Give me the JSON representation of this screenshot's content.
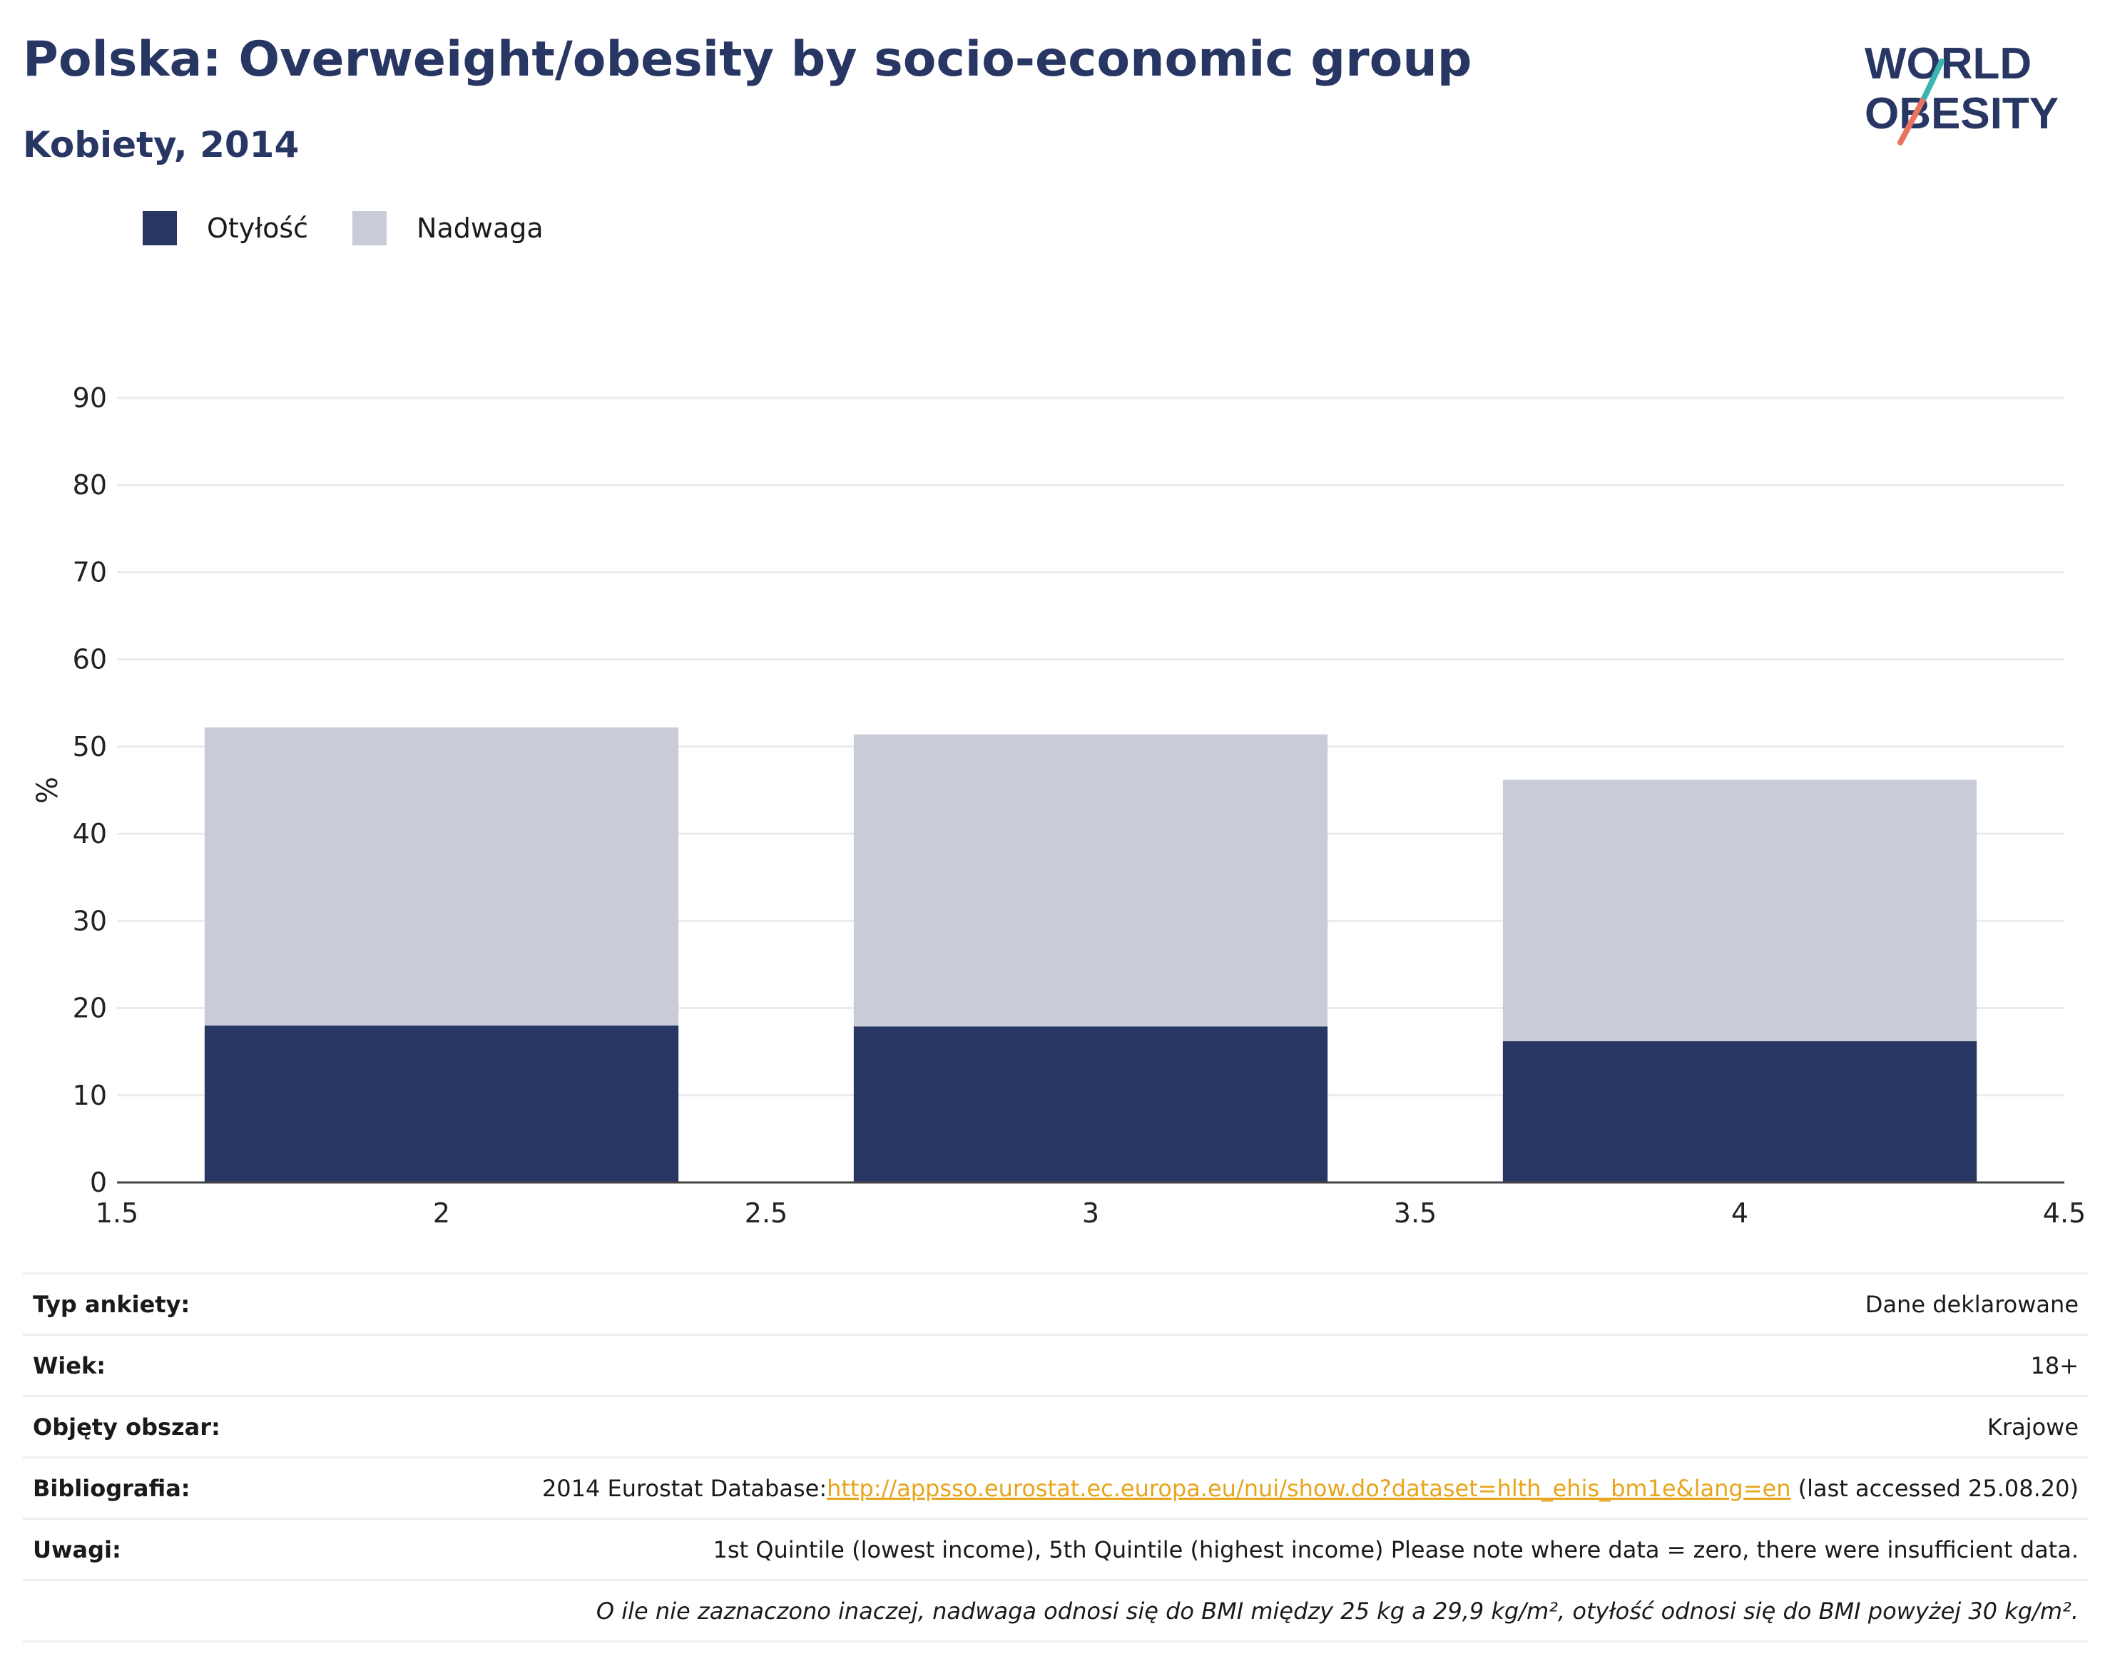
{
  "header": {
    "title": "Polska: Overweight/obesity by socio-economic group",
    "subtitle": "Kobiety, 2014"
  },
  "logo": {
    "line1": "WORLD",
    "line2": "OBESITY"
  },
  "legend": [
    {
      "label": "Otyłość",
      "color": "#283663"
    },
    {
      "label": "Nadwaga",
      "color": "#c9ccd8"
    }
  ],
  "chart_data": {
    "type": "bar",
    "stacked": true,
    "x": [
      2,
      3,
      4
    ],
    "series": [
      {
        "name": "Otyłość",
        "values": [
          18.0,
          17.9,
          16.2
        ],
        "color": "#283663"
      },
      {
        "name": "Nadwaga",
        "values": [
          34.2,
          33.5,
          30.0
        ],
        "color": "#c9ccd8"
      }
    ],
    "xlim": [
      1.5,
      4.5
    ],
    "ylim": [
      0,
      90
    ],
    "x_ticks": [
      "1.5",
      "2",
      "2.5",
      "3",
      "3.5",
      "4",
      "4.5"
    ],
    "y_ticks": [
      "0",
      "10",
      "20",
      "30",
      "40",
      "50",
      "60",
      "70",
      "80",
      "90"
    ],
    "ylabel": "%",
    "xlabel": "",
    "grid": true,
    "legend_position": "top-left"
  },
  "meta": {
    "survey_type_label": "Typ ankiety:",
    "survey_type_value": "Dane deklarowane",
    "age_label": "Wiek:",
    "age_value": "18+",
    "area_label": "Objęty obszar:",
    "area_value": "Krajowe",
    "bibliography_label": "Bibliografia:",
    "bibliography_prefix": "2014 Eurostat Database:",
    "bibliography_link": "http://appsso.eurostat.ec.europa.eu/nui/show.do?dataset=hlth_ehis_bm1e&lang=en",
    "bibliography_suffix": " (last accessed 25.08.20)",
    "notes_label": "Uwagi:",
    "notes_value": "1st Quintile (lowest income), 5th Quintile (highest income) Please note where data = zero, there were insufficient data.",
    "footnote": "O ile nie zaznaczono inaczej, nadwaga odnosi się do BMI między 25 kg a 29,9 kg/m², otyłość odnosi się do BMI powyżej 30 kg/m²."
  }
}
